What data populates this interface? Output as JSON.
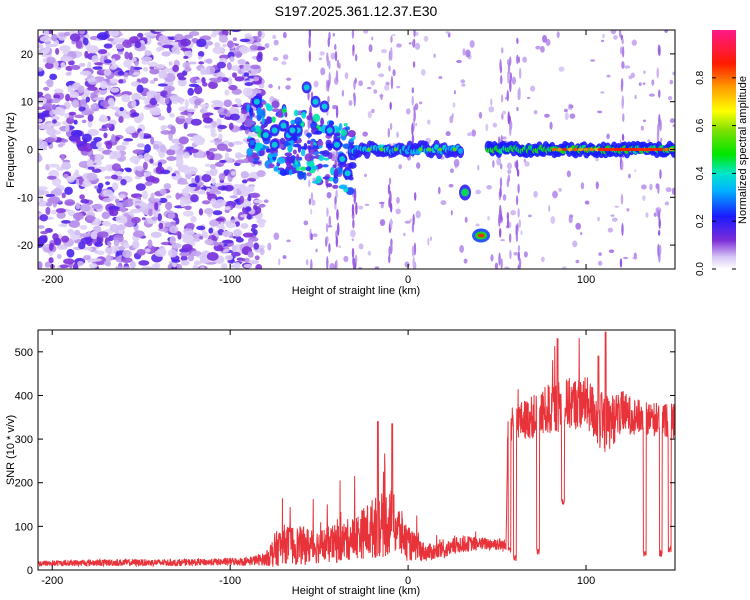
{
  "title": "S197.2025.361.12.37.E30",
  "chart_data": [
    {
      "type": "heatmap",
      "xlabel": "Height of straight line (km)",
      "ylabel": "Frequency (Hz)",
      "xlim": [
        -208,
        150
      ],
      "ylim": [
        -25,
        25
      ],
      "xticks": [
        -200,
        -100,
        0,
        100
      ],
      "yticks": [
        -20,
        -10,
        0,
        10,
        20
      ],
      "colorbar": {
        "label": "Normalized spectral amplitude",
        "range": [
          0,
          1
        ],
        "ticks": [
          0,
          0.2,
          0.4,
          0.6,
          0.8
        ],
        "tick_labels": [
          "0.0",
          "0.2",
          "0.4",
          "0.6",
          "0.8"
        ]
      },
      "features": [
        {
          "region": "noise",
          "x": [
            -208,
            -82
          ],
          "freq": [
            -25,
            25
          ],
          "amplitude": 0.12
        },
        {
          "region": "scatter-arc",
          "x": [
            -90,
            -30
          ],
          "freq": [
            -8,
            14
          ],
          "amplitude": 0.35
        },
        {
          "region": "band",
          "x": [
            -30,
            30
          ],
          "freq": [
            0
          ],
          "amplitude": 0.4
        },
        {
          "region": "blob",
          "x": [
            29,
            35
          ],
          "freq": [
            -9
          ],
          "amplitude": 0.45
        },
        {
          "region": "blob",
          "x": [
            38,
            46
          ],
          "freq": [
            -18
          ],
          "amplitude": 0.9
        },
        {
          "region": "band",
          "x": [
            45,
            150
          ],
          "freq": [
            0
          ],
          "amplitude": 0.6
        }
      ]
    },
    {
      "type": "line",
      "xlabel": "Height of straight line (km)",
      "ylabel": "SNR (10 * v/v)",
      "xlim": [
        -208,
        150
      ],
      "ylim": [
        0,
        550
      ],
      "xticks": [
        -200,
        -100,
        0,
        100
      ],
      "yticks": [
        0,
        100,
        200,
        300,
        400,
        500
      ],
      "series": [
        {
          "name": "SNR",
          "color": "#e8333a",
          "x": [
            -208,
            -190,
            -170,
            -150,
            -130,
            -110,
            -90,
            -80,
            -75,
            -70,
            -60,
            -50,
            -40,
            -30,
            -20,
            -10,
            -5,
            0,
            10,
            20,
            30,
            40,
            50,
            55,
            56,
            60,
            70,
            80,
            90,
            100,
            110,
            120,
            130,
            140,
            150
          ],
          "mean": [
            15,
            16,
            17,
            17,
            17,
            18,
            20,
            25,
            45,
            60,
            55,
            55,
            60,
            75,
            95,
            110,
            90,
            60,
            40,
            45,
            60,
            60,
            60,
            55,
            330,
            340,
            350,
            370,
            380,
            385,
            330,
            360,
            350,
            345,
            340
          ],
          "noise": [
            7,
            7,
            8,
            8,
            8,
            8,
            10,
            15,
            40,
            45,
            45,
            40,
            45,
            50,
            70,
            80,
            60,
            40,
            20,
            20,
            20,
            15,
            15,
            15,
            40,
            40,
            50,
            60,
            60,
            60,
            70,
            50,
            40,
            40,
            40
          ],
          "peaks": [
            {
              "x": -17,
              "y": 340
            },
            {
              "x": -9,
              "y": 335
            },
            {
              "x": 84,
              "y": 530
            },
            {
              "x": 111,
              "y": 545
            },
            {
              "x": 107,
              "y": 490
            }
          ],
          "drops": [
            {
              "x": 57,
              "y": 40
            },
            {
              "x": 60,
              "y": 20
            },
            {
              "x": 73,
              "y": 35
            },
            {
              "x": 87,
              "y": 150
            },
            {
              "x": 133,
              "y": 30
            },
            {
              "x": 142,
              "y": 30
            },
            {
              "x": 147,
              "y": 40
            }
          ]
        }
      ]
    }
  ]
}
